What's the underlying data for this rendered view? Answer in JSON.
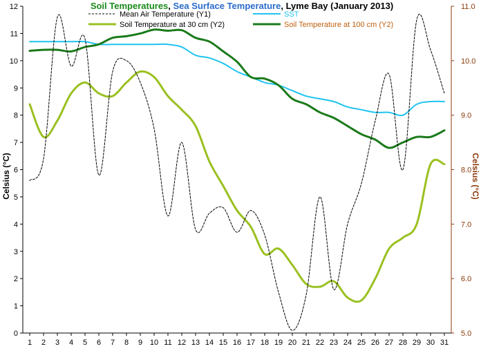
{
  "chart_data": {
    "type": "line",
    "title_parts": [
      {
        "text": "Soil Temperatures",
        "color": "#1a8a1a"
      },
      {
        "text": ", ",
        "color": "#000000"
      },
      {
        "text": "Sea Surface Temperature",
        "color": "#2a6ccc"
      },
      {
        "text": ", Lyme Bay (January 2013)",
        "color": "#000000"
      }
    ],
    "ylabel": "Celsius (°C)",
    "y2label": "Celsius (°C)",
    "x": [
      1,
      2,
      3,
      4,
      5,
      6,
      7,
      8,
      9,
      10,
      11,
      12,
      13,
      14,
      15,
      16,
      17,
      18,
      19,
      20,
      21,
      22,
      23,
      24,
      25,
      26,
      27,
      28,
      29,
      30,
      31
    ],
    "xlim": [
      0.5,
      31.5
    ],
    "ylim": [
      0,
      12
    ],
    "y2lim": [
      5.0,
      11.0
    ],
    "yticks": [
      "0",
      "1",
      "2",
      "3",
      "4",
      "5",
      "6",
      "7",
      "8",
      "9",
      "10",
      "11",
      "12"
    ],
    "y2ticks": [
      "5.0",
      "6.0",
      "7.0",
      "8.0",
      "9.0",
      "10.0",
      "11.0"
    ],
    "series": [
      {
        "name": "Mean Air Temperature (Y1)",
        "axis": "y1",
        "color": "#000000",
        "style": "dashed",
        "values": [
          5.6,
          6.4,
          11.6,
          9.8,
          10.8,
          5.8,
          9.6,
          10.0,
          9.2,
          7.5,
          4.3,
          7.0,
          3.8,
          4.4,
          4.6,
          3.7,
          4.5,
          3.6,
          1.5,
          0.1,
          1.4,
          5.0,
          1.6,
          4.0,
          5.5,
          7.8,
          9.5,
          6.0,
          11.5,
          10.4,
          8.8
        ]
      },
      {
        "name": "SST",
        "axis": "y1",
        "color": "#1ec3f0",
        "style": "solid",
        "values": [
          10.7,
          10.7,
          10.7,
          10.7,
          10.7,
          10.6,
          10.6,
          10.6,
          10.6,
          10.6,
          10.6,
          10.5,
          10.2,
          10.1,
          9.9,
          9.6,
          9.4,
          9.2,
          9.1,
          8.9,
          8.7,
          8.6,
          8.5,
          8.3,
          8.2,
          8.1,
          8.1,
          8.0,
          8.4,
          8.5,
          8.5
        ]
      },
      {
        "name": "Soil Temperature at 30 cm (Y2)",
        "axis": "y2",
        "color": "#9ac020",
        "style": "solid",
        "values": [
          9.2,
          8.6,
          8.9,
          9.4,
          9.6,
          9.4,
          9.35,
          9.6,
          9.8,
          9.7,
          9.35,
          9.1,
          8.8,
          8.15,
          7.7,
          7.25,
          6.95,
          6.45,
          6.55,
          6.25,
          5.9,
          5.85,
          5.95,
          5.65,
          5.6,
          6.0,
          6.55,
          6.75,
          7.0,
          8.1,
          8.1
        ]
      },
      {
        "name": "Soil Temperature at 100 cm (Y2)",
        "axis": "y2",
        "color": "#1a7a1a",
        "style": "solid",
        "values": [
          10.18,
          10.2,
          10.2,
          10.17,
          10.25,
          10.3,
          10.42,
          10.45,
          10.5,
          10.57,
          10.55,
          10.56,
          10.42,
          10.35,
          10.17,
          9.98,
          9.7,
          9.67,
          9.55,
          9.3,
          9.2,
          9.05,
          8.95,
          8.8,
          8.65,
          8.55,
          8.4,
          8.5,
          8.6,
          8.6,
          8.72
        ]
      }
    ]
  }
}
